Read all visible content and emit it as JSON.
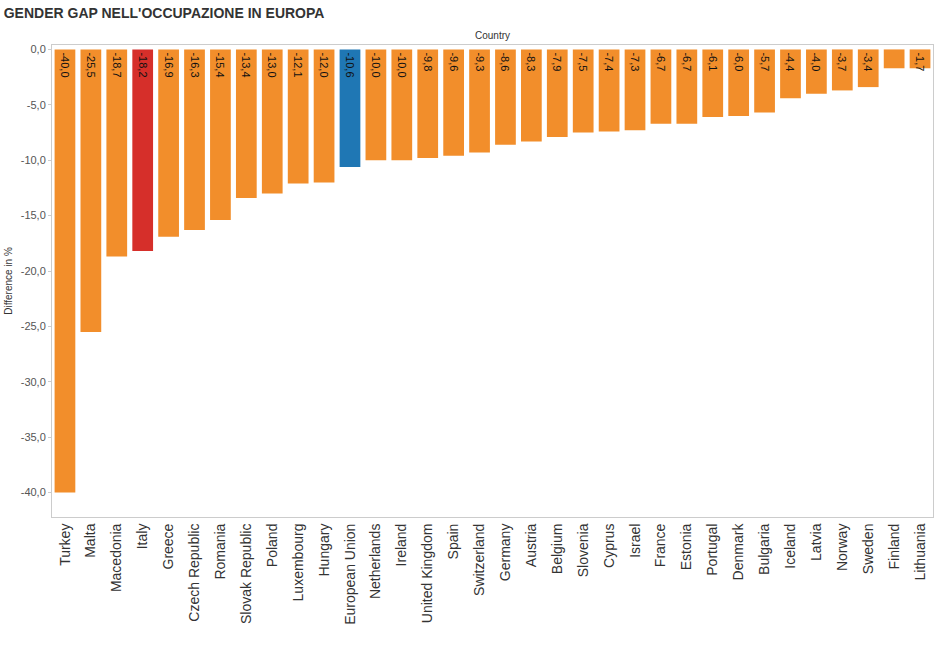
{
  "chart_data": {
    "type": "bar",
    "title": "GENDER GAP NELL'OCCUPAZIONE IN EUROPA",
    "x_label": "Country",
    "y_label": "Difference in %",
    "categories": [
      "Turkey",
      "Malta",
      "Macedonia",
      "Italy",
      "Greece",
      "Czech Republic",
      "Romania",
      "Slovak Republic",
      "Poland",
      "Luxembourg",
      "Hungary",
      "European Union",
      "Netherlands",
      "Ireland",
      "United Kingdom",
      "Spain",
      "Switzerland",
      "Germany",
      "Austria",
      "Belgium",
      "Slovenia",
      "Cyprus",
      "Israel",
      "France",
      "Estonia",
      "Portugal",
      "Denmark",
      "Bulgaria",
      "Iceland",
      "Latvia",
      "Norway",
      "Sweden",
      "Finland",
      "Lithuania"
    ],
    "values": [
      -40.0,
      -25.5,
      -18.7,
      -18.2,
      -16.9,
      -16.3,
      -15.4,
      -13.4,
      -13.0,
      -12.1,
      -12.0,
      -10.6,
      -10.0,
      -10.0,
      -9.8,
      -9.6,
      -9.3,
      -8.6,
      -8.3,
      -7.9,
      -7.5,
      -7.4,
      -7.3,
      -6.7,
      -6.7,
      -6.1,
      -6.0,
      -5.7,
      -4.4,
      -4.0,
      -3.7,
      -3.4,
      -1.7,
      -1.7
    ],
    "value_labels": [
      "-40,0",
      "-25,5",
      "-18,7",
      "-18,2",
      "-16,9",
      "-16,3",
      "-15,4",
      "-13,4",
      "-13,0",
      "-12,1",
      "-12,0",
      "-10,6",
      "-10,0",
      "-10,0",
      "-9,8",
      "-9,6",
      "-9,3",
      "-8,6",
      "-8,3",
      "-7,9",
      "-7,5",
      "-7,4",
      "-7,3",
      "-6,7",
      "-6,7",
      "-6,1",
      "-6,0",
      "-5,7",
      "-4,4",
      "-4,0",
      "-3,7",
      "-3,4",
      null,
      "-1,7"
    ],
    "colors": [
      "#f28e2b",
      "#f28e2b",
      "#f28e2b",
      "#d62f2a",
      "#f28e2b",
      "#f28e2b",
      "#f28e2b",
      "#f28e2b",
      "#f28e2b",
      "#f28e2b",
      "#f28e2b",
      "#1f77b4",
      "#f28e2b",
      "#f28e2b",
      "#f28e2b",
      "#f28e2b",
      "#f28e2b",
      "#f28e2b",
      "#f28e2b",
      "#f28e2b",
      "#f28e2b",
      "#f28e2b",
      "#f28e2b",
      "#f28e2b",
      "#f28e2b",
      "#f28e2b",
      "#f28e2b",
      "#f28e2b",
      "#f28e2b",
      "#f28e2b",
      "#f28e2b",
      "#f28e2b",
      "#f28e2b",
      "#f28e2b"
    ],
    "ylim": [
      -42.2,
      0.4
    ],
    "yticks": [
      {
        "value": 0,
        "label": "0,0"
      },
      {
        "value": -5,
        "label": "-5,0"
      },
      {
        "value": -10,
        "label": "-10,0"
      },
      {
        "value": -15,
        "label": "-15,0"
      },
      {
        "value": -20,
        "label": "-20,0"
      },
      {
        "value": -25,
        "label": "-25,0"
      },
      {
        "value": -30,
        "label": "-30,0"
      },
      {
        "value": -35,
        "label": "-35,0"
      },
      {
        "value": -40,
        "label": "-40,0"
      }
    ],
    "grid": false,
    "data_labels": true
  }
}
